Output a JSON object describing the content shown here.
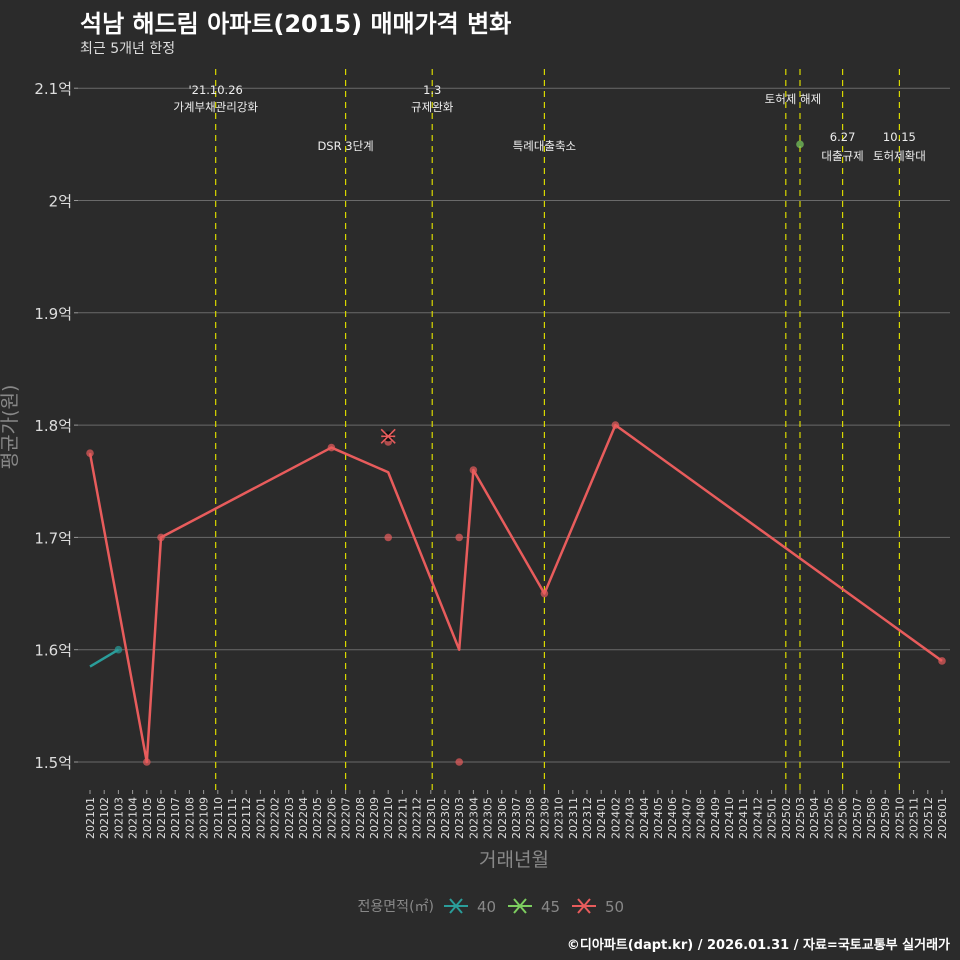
{
  "title": "석남 해드림 아파트(2015) 매매가격 변화",
  "subtitle": "최근 5개년 한정",
  "caption": "©디아파트(dapt.kr) / 2026.01.31 / 자료=국토교통부 실거래가",
  "chart_data": {
    "type": "line",
    "xlabel": "거래년월",
    "ylabel": "평균가(원)",
    "ylim": [
      1.47,
      2.12
    ],
    "yticks": [
      1.5,
      1.6,
      1.7,
      1.8,
      1.9,
      2.0,
      2.1
    ],
    "ytick_labels": [
      "1.5억",
      "1.6억",
      "1.7억",
      "1.8억",
      "1.9억",
      "2억",
      "2.1억"
    ],
    "x_categories": [
      "202101",
      "202102",
      "202103",
      "202104",
      "202105",
      "202106",
      "202107",
      "202108",
      "202109",
      "202110",
      "202111",
      "202112",
      "202201",
      "202202",
      "202203",
      "202204",
      "202205",
      "202206",
      "202207",
      "202208",
      "202209",
      "202210",
      "202211",
      "202212",
      "202301",
      "202302",
      "202303",
      "202304",
      "202305",
      "202306",
      "202307",
      "202308",
      "202309",
      "202310",
      "202311",
      "202312",
      "202401",
      "202402",
      "202403",
      "202404",
      "202405",
      "202406",
      "202407",
      "202408",
      "202409",
      "202410",
      "202411",
      "202412",
      "202501",
      "202502",
      "202503",
      "202504",
      "202505",
      "202506",
      "202507",
      "202508",
      "202509",
      "202510",
      "202511",
      "202512",
      "202601"
    ],
    "grid": true,
    "legend": {
      "title": "전용면적(㎡)",
      "placement": "bottom",
      "entries": [
        "40",
        "45",
        "50"
      ]
    },
    "series": [
      {
        "name": "40",
        "color": "#2a9d9a",
        "line": [
          {
            "x": "202101",
            "y": 1.585
          },
          {
            "x": "202103",
            "y": 1.6
          }
        ],
        "points": [
          {
            "x": "202103",
            "y": 1.6
          }
        ]
      },
      {
        "name": "45",
        "color": "#7ccd5f",
        "line": [],
        "points": [
          {
            "x": "202503",
            "y": 2.05
          }
        ]
      },
      {
        "name": "50",
        "color": "#e85c5c",
        "line": [
          {
            "x": "202101",
            "y": 1.775
          },
          {
            "x": "202105",
            "y": 1.5
          },
          {
            "x": "202106",
            "y": 1.7
          },
          {
            "x": "202206",
            "y": 1.78
          },
          {
            "x": "202210",
            "y": 1.758
          },
          {
            "x": "202303",
            "y": 1.6
          },
          {
            "x": "202304",
            "y": 1.76
          },
          {
            "x": "202309",
            "y": 1.65
          },
          {
            "x": "202402",
            "y": 1.8
          },
          {
            "x": "202601",
            "y": 1.59
          }
        ],
        "points": [
          {
            "x": "202101",
            "y": 1.775
          },
          {
            "x": "202105",
            "y": 1.5
          },
          {
            "x": "202106",
            "y": 1.7
          },
          {
            "x": "202206",
            "y": 1.78
          },
          {
            "x": "202210",
            "y": 1.785
          },
          {
            "x": "202210",
            "y": 1.7
          },
          {
            "x": "202303",
            "y": 1.7
          },
          {
            "x": "202303",
            "y": 1.5
          },
          {
            "x": "202304",
            "y": 1.76
          },
          {
            "x": "202309",
            "y": 1.65
          },
          {
            "x": "202402",
            "y": 1.8
          },
          {
            "x": "202601",
            "y": 1.59
          }
        ],
        "cross_markers": [
          {
            "x": "202210",
            "y": 1.79
          }
        ]
      }
    ],
    "events": [
      {
        "month_pos": 8.85,
        "lines": [
          "'21.10.26",
          "가계부채관리강화"
        ],
        "row": "top"
      },
      {
        "month_pos": 18,
        "lines": [
          "DSR 3단계"
        ],
        "row": "low"
      },
      {
        "month_pos": 24.1,
        "lines": [
          "1.3",
          "규제완화"
        ],
        "row": "top"
      },
      {
        "month_pos": 32,
        "lines": [
          "특례대출축소"
        ],
        "row": "low"
      },
      {
        "month_pos": 49,
        "lines": [],
        "row": "none"
      },
      {
        "month_pos": 50,
        "lines": [
          "토허제 해제"
        ],
        "row": "mid",
        "label_pos": 49.5
      },
      {
        "month_pos": 53,
        "lines": [
          "6.27",
          "대출규제"
        ],
        "row": "lower2"
      },
      {
        "month_pos": 57,
        "lines": [
          "10.15",
          "토허제확대"
        ],
        "row": "lower2"
      }
    ]
  }
}
